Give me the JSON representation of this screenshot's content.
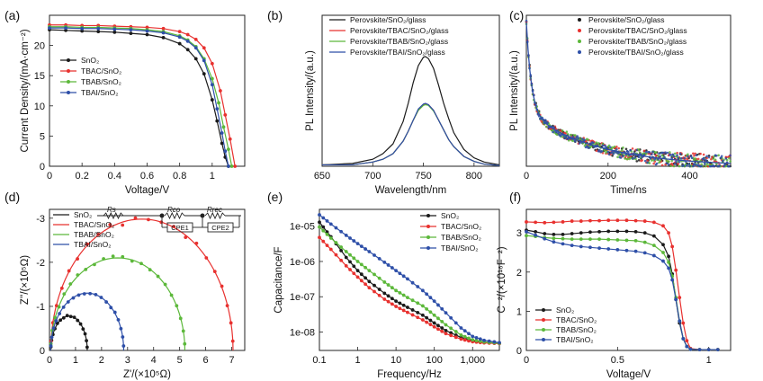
{
  "colors": {
    "black": "#1a1a1a",
    "red": "#e8312f",
    "green": "#5cb83a",
    "blue": "#2e4fa8"
  },
  "chart_data": [
    {
      "id": "a",
      "panel_label": "(a)",
      "type": "line",
      "xlabel": "Voltage/V",
      "ylabel": "Current Density/(mA·cm⁻²)",
      "xlim": [
        0,
        1.2
      ],
      "ylim": [
        0,
        25
      ],
      "xticks": [
        0,
        0.2,
        0.4,
        0.6,
        0.8,
        1
      ],
      "xtick_labels": [
        "0",
        "0.2",
        "0.4",
        "0.6",
        "0.8",
        "1"
      ],
      "yticks": [
        0,
        5,
        10,
        15,
        20
      ],
      "ytick_labels": [
        "0",
        "5",
        "10",
        "15",
        "20"
      ],
      "legend_position": "left",
      "series": [
        {
          "name": "SnO₂",
          "color": "black",
          "x": [
            0,
            0.1,
            0.2,
            0.3,
            0.4,
            0.5,
            0.6,
            0.7,
            0.8,
            0.85,
            0.9,
            0.95,
            1.0,
            1.03,
            1.06,
            1.08,
            1.1
          ],
          "y": [
            22.6,
            22.5,
            22.4,
            22.3,
            22.2,
            22.0,
            21.8,
            21.3,
            20.3,
            19.3,
            17.8,
            15.3,
            11.0,
            7.5,
            3.8,
            1.5,
            0
          ]
        },
        {
          "name": "TBAC/SnO₂",
          "color": "red",
          "x": [
            0,
            0.1,
            0.2,
            0.3,
            0.4,
            0.5,
            0.6,
            0.7,
            0.8,
            0.85,
            0.9,
            0.95,
            1.0,
            1.05,
            1.08,
            1.11,
            1.14
          ],
          "y": [
            23.4,
            23.4,
            23.3,
            23.3,
            23.2,
            23.1,
            23.0,
            22.8,
            22.3,
            21.8,
            21.0,
            19.6,
            17.0,
            12.5,
            8.5,
            4.5,
            0
          ]
        },
        {
          "name": "TBAB/SnO₂",
          "color": "green",
          "x": [
            0,
            0.1,
            0.2,
            0.3,
            0.4,
            0.5,
            0.6,
            0.7,
            0.8,
            0.85,
            0.9,
            0.95,
            1.0,
            1.04,
            1.07,
            1.1,
            1.12
          ],
          "y": [
            23.1,
            23.1,
            23.0,
            23.0,
            22.9,
            22.8,
            22.6,
            22.3,
            21.6,
            20.9,
            19.8,
            17.8,
            14.5,
            10.5,
            6.5,
            2.8,
            0
          ]
        },
        {
          "name": "TBAI/SnO₂",
          "color": "blue",
          "x": [
            0,
            0.1,
            0.2,
            0.3,
            0.4,
            0.5,
            0.6,
            0.7,
            0.8,
            0.85,
            0.9,
            0.95,
            1.0,
            1.03,
            1.06,
            1.08,
            1.1
          ],
          "y": [
            22.9,
            22.9,
            22.8,
            22.8,
            22.7,
            22.6,
            22.4,
            22.1,
            21.4,
            20.7,
            19.6,
            17.5,
            13.5,
            9.5,
            5.5,
            2.5,
            0
          ]
        }
      ]
    },
    {
      "id": "b",
      "panel_label": "(b)",
      "type": "line",
      "xlabel": "Wavelength/nm",
      "ylabel": "PL Intensity/(a.u.)",
      "xlim": [
        650,
        825
      ],
      "ylim": [
        0,
        1.08
      ],
      "xticks": [
        650,
        700,
        750,
        800
      ],
      "xtick_labels": [
        "650",
        "700",
        "750",
        "800"
      ],
      "yticks": [],
      "ytick_labels": [],
      "legend_position": "top",
      "series": [
        {
          "name": "Perovskite/SnO₂/glass",
          "color": "black",
          "x": [
            650,
            680,
            700,
            710,
            720,
            730,
            735,
            740,
            745,
            750,
            752,
            755,
            760,
            765,
            770,
            775,
            780,
            790,
            800,
            810,
            825
          ],
          "y": [
            0.01,
            0.02,
            0.05,
            0.09,
            0.16,
            0.32,
            0.45,
            0.6,
            0.72,
            0.78,
            0.785,
            0.77,
            0.7,
            0.58,
            0.45,
            0.34,
            0.24,
            0.12,
            0.06,
            0.03,
            0.01
          ]
        },
        {
          "name": "Perovskite/TBAC/SnO₂/glass",
          "color": "red",
          "x": [
            650,
            680,
            700,
            710,
            720,
            730,
            735,
            740,
            745,
            750,
            752,
            755,
            760,
            765,
            770,
            775,
            780,
            790,
            800,
            810,
            825
          ],
          "y": [
            0.01,
            0.01,
            0.03,
            0.05,
            0.09,
            0.18,
            0.25,
            0.33,
            0.4,
            0.44,
            0.445,
            0.44,
            0.4,
            0.33,
            0.26,
            0.19,
            0.14,
            0.07,
            0.035,
            0.015,
            0.005
          ]
        },
        {
          "name": "Perovskite/TBAB/SnO₂/glass",
          "color": "green",
          "x": [
            650,
            680,
            700,
            710,
            720,
            730,
            735,
            740,
            745,
            750,
            752,
            755,
            760,
            765,
            770,
            775,
            780,
            790,
            800,
            810,
            825
          ],
          "y": [
            0.01,
            0.01,
            0.03,
            0.05,
            0.09,
            0.18,
            0.25,
            0.33,
            0.4,
            0.435,
            0.44,
            0.435,
            0.395,
            0.33,
            0.26,
            0.19,
            0.14,
            0.07,
            0.035,
            0.015,
            0.005
          ]
        },
        {
          "name": "Perovskite/TBAI/SnO₂/glass",
          "color": "blue",
          "x": [
            650,
            680,
            700,
            710,
            720,
            730,
            735,
            740,
            745,
            750,
            752,
            755,
            760,
            765,
            770,
            775,
            780,
            790,
            800,
            810,
            825
          ],
          "y": [
            0.01,
            0.01,
            0.03,
            0.05,
            0.09,
            0.18,
            0.25,
            0.33,
            0.41,
            0.445,
            0.45,
            0.44,
            0.4,
            0.33,
            0.26,
            0.19,
            0.14,
            0.07,
            0.035,
            0.015,
            0.005
          ]
        }
      ]
    },
    {
      "id": "c",
      "panel_label": "(c)",
      "type": "scatter",
      "xlabel": "Time/ns",
      "ylabel": "PL Intensity/(a.u.)",
      "xlim": [
        0,
        500
      ],
      "ylim": [
        0,
        1.05
      ],
      "xticks": [
        0,
        200,
        400
      ],
      "xtick_labels": [
        "0",
        "200",
        "400"
      ],
      "yticks": [],
      "ytick_labels": [],
      "legend_position": "top-right",
      "decay": {
        "a1": 0.62,
        "t1": 12,
        "a2": 0.38,
        "t2": 170,
        "noise": 0.045
      },
      "series": [
        {
          "name": "Perovskite/SnO₂/glass",
          "color": "black"
        },
        {
          "name": "Perovskite/TBAC/SnO₂/glass",
          "color": "red"
        },
        {
          "name": "Perovskite/TBAB/SnO₂/glass",
          "color": "green"
        },
        {
          "name": "Perovskite/TBAI/SnO₂/glass",
          "color": "blue"
        }
      ]
    },
    {
      "id": "d",
      "panel_label": "(d)",
      "type": "scatter",
      "xlabel": "Z'/(×10⁵Ω)",
      "ylabel": "Z''/(×10⁵Ω)",
      "xlim": [
        0,
        7.5
      ],
      "ylim": [
        0,
        -3.2
      ],
      "xticks": [
        0,
        1,
        2,
        3,
        4,
        5,
        6,
        7
      ],
      "xtick_labels": [
        "0",
        "1",
        "2",
        "3",
        "4",
        "5",
        "6",
        "7"
      ],
      "yticks": [
        0,
        -1,
        -2,
        -3
      ],
      "ytick_labels": [
        "0",
        "-1",
        "-2",
        "-3"
      ],
      "legend_position": "top-left",
      "circuit_labels": {
        "rs": "Rs",
        "rco": "Rco",
        "cpe1": "CPE1",
        "rrec": "Rrec",
        "cpe2": "CPE2"
      },
      "series": [
        {
          "name": "SnO₂",
          "color": "black",
          "arc_start": 0.05,
          "arc_end": 1.45,
          "arc_height": 0.78,
          "points": 16
        },
        {
          "name": "TBAC/SnO₂",
          "color": "red",
          "arc_start": 0.05,
          "arc_end": 7.05,
          "arc_height": 2.98,
          "points": 22
        },
        {
          "name": "TBAB/SnO₂",
          "color": "green",
          "arc_start": 0.05,
          "arc_end": 5.2,
          "arc_height": 2.1,
          "points": 22
        },
        {
          "name": "TBAI/SnO₂",
          "color": "blue",
          "arc_start": 0.05,
          "arc_end": 2.85,
          "arc_height": 1.3,
          "points": 20
        }
      ]
    },
    {
      "id": "e",
      "panel_label": "(e)",
      "type": "line",
      "xlabel": "Frequency/Hz",
      "ylabel": "Capacitance/F",
      "xscale": "log",
      "yscale": "log",
      "xlim": [
        0.1,
        5000
      ],
      "ylim": [
        3e-09,
        3e-05
      ],
      "xticks": [
        0.1,
        1,
        10,
        100,
        1000
      ],
      "xtick_labels": [
        "0.1",
        "1",
        "10",
        "100",
        "1,000"
      ],
      "yticks": [
        1e-08,
        1e-07,
        1e-06,
        1e-05
      ],
      "ytick_labels": [
        "1e-08",
        "1e-07",
        "1e-06",
        "1e-05"
      ],
      "legend_position": "top-right",
      "series": [
        {
          "name": "SnO₂",
          "color": "black",
          "x": [
            0.1,
            0.2,
            0.5,
            1,
            2,
            5,
            10,
            20,
            50,
            100,
            200,
            500,
            1000,
            2000,
            5000
          ],
          "y": [
            1.3e-05,
            5e-06,
            1.3e-06,
            5.5e-07,
            2.7e-07,
            1.25e-07,
            7.5e-08,
            5e-08,
            3e-08,
            1.8e-08,
            1.1e-08,
            7e-09,
            5.7e-09,
            5.1e-09,
            4.8e-09
          ]
        },
        {
          "name": "TBAC/SnO₂",
          "color": "red",
          "x": [
            0.1,
            0.2,
            0.5,
            1,
            2,
            5,
            10,
            20,
            50,
            100,
            200,
            500,
            1000,
            2000,
            5000
          ],
          "y": [
            4.8e-06,
            2.2e-06,
            7.5e-07,
            3.6e-07,
            1.8e-07,
            8.5e-08,
            5.3e-08,
            3.6e-08,
            2.2e-08,
            1.4e-08,
            9e-09,
            6.3e-09,
            5.3e-09,
            4.9e-09,
            4.7e-09
          ]
        },
        {
          "name": "TBAB/SnO₂",
          "color": "green",
          "x": [
            0.1,
            0.2,
            0.5,
            1,
            2,
            5,
            10,
            20,
            50,
            100,
            200,
            500,
            1000,
            2000,
            5000
          ],
          "y": [
            9.5e-06,
            4.6e-06,
            1.9e-06,
            1e-06,
            5.5e-07,
            2.6e-07,
            1.5e-07,
            9.5e-08,
            5.5e-08,
            3e-08,
            1.6e-08,
            8.2e-09,
            6e-09,
            5.2e-09,
            4.8e-09
          ]
        },
        {
          "name": "TBAI/SnO₂",
          "color": "blue",
          "x": [
            0.1,
            0.2,
            0.5,
            1,
            2,
            5,
            10,
            20,
            50,
            100,
            200,
            500,
            1000,
            2000,
            5000
          ],
          "y": [
            2.1e-05,
            1.15e-05,
            5.5e-06,
            3.2e-06,
            1.9e-06,
            9.5e-07,
            5.5e-07,
            3.2e-07,
            1.5e-07,
            7.5e-08,
            3.5e-08,
            1.3e-08,
            7.5e-09,
            5.8e-09,
            5e-09
          ]
        }
      ]
    },
    {
      "id": "f",
      "panel_label": "(f)",
      "type": "line",
      "xlabel": "Voltage/V",
      "ylabel": "C⁻²/(×10¹⁶F⁻²)",
      "xlim": [
        0,
        1.12
      ],
      "ylim": [
        0,
        3.6
      ],
      "xticks": [
        0,
        0.5,
        1
      ],
      "xtick_labels": [
        "0",
        "0.5",
        "1"
      ],
      "yticks": [
        0,
        1,
        2,
        3
      ],
      "ytick_labels": [
        "0",
        "1",
        "2",
        "3"
      ],
      "legend_position": "bottom-left",
      "series": [
        {
          "name": "SnO₂",
          "color": "black",
          "x": [
            0,
            0.05,
            0.1,
            0.15,
            0.2,
            0.25,
            0.3,
            0.35,
            0.4,
            0.45,
            0.5,
            0.55,
            0.6,
            0.65,
            0.7,
            0.75,
            0.78,
            0.8,
            0.82,
            0.84,
            0.86,
            0.88,
            0.9,
            0.95,
            1.0,
            1.05
          ],
          "y": [
            3.07,
            3.03,
            2.98,
            2.96,
            2.96,
            2.98,
            3.0,
            3.02,
            3.03,
            3.04,
            3.04,
            3.04,
            3.03,
            3.0,
            2.92,
            2.7,
            2.4,
            1.95,
            1.3,
            0.7,
            0.3,
            0.1,
            0.03,
            0.02,
            0.02,
            0.02
          ]
        },
        {
          "name": "TBAC/SnO₂",
          "color": "red",
          "x": [
            0,
            0.05,
            0.1,
            0.15,
            0.2,
            0.25,
            0.3,
            0.35,
            0.4,
            0.45,
            0.5,
            0.55,
            0.6,
            0.65,
            0.7,
            0.75,
            0.78,
            0.8,
            0.82,
            0.84,
            0.86,
            0.88,
            0.9,
            0.95,
            1.0,
            1.05
          ],
          "y": [
            3.28,
            3.27,
            3.26,
            3.27,
            3.28,
            3.3,
            3.3,
            3.31,
            3.31,
            3.32,
            3.32,
            3.32,
            3.31,
            3.3,
            3.27,
            3.18,
            3.0,
            2.65,
            2.05,
            1.35,
            0.7,
            0.25,
            0.05,
            0.02,
            0.02,
            0.02
          ]
        },
        {
          "name": "TBAB/SnO₂",
          "color": "green",
          "x": [
            0,
            0.05,
            0.1,
            0.15,
            0.2,
            0.25,
            0.3,
            0.35,
            0.4,
            0.45,
            0.5,
            0.55,
            0.6,
            0.65,
            0.7,
            0.75,
            0.78,
            0.8,
            0.82,
            0.84,
            0.86,
            0.88,
            0.9,
            0.95,
            1.0,
            1.05
          ],
          "y": [
            2.93,
            2.91,
            2.88,
            2.86,
            2.85,
            2.84,
            2.84,
            2.84,
            2.84,
            2.83,
            2.82,
            2.81,
            2.8,
            2.76,
            2.68,
            2.5,
            2.25,
            1.9,
            1.35,
            0.75,
            0.3,
            0.1,
            0.03,
            0.02,
            0.02,
            0.02
          ]
        },
        {
          "name": "TBAI/SnO₂",
          "color": "blue",
          "x": [
            0,
            0.05,
            0.1,
            0.15,
            0.2,
            0.25,
            0.3,
            0.35,
            0.4,
            0.45,
            0.5,
            0.55,
            0.6,
            0.65,
            0.7,
            0.75,
            0.78,
            0.8,
            0.82,
            0.84,
            0.86,
            0.88,
            0.9,
            0.95,
            1.0,
            1.05
          ],
          "y": [
            3.03,
            2.94,
            2.85,
            2.77,
            2.72,
            2.68,
            2.65,
            2.63,
            2.61,
            2.59,
            2.57,
            2.55,
            2.53,
            2.49,
            2.42,
            2.28,
            2.1,
            1.8,
            1.3,
            0.75,
            0.3,
            0.1,
            0.03,
            0.02,
            0.02,
            0.02
          ]
        }
      ]
    }
  ]
}
